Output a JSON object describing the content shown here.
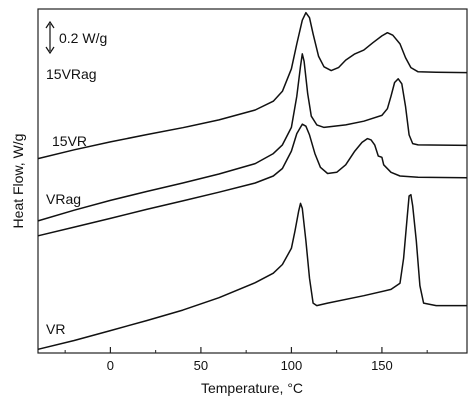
{
  "chart_data": {
    "type": "line",
    "xlabel": "Temperature, °C",
    "ylabel": "Heat Flow, W/g",
    "xlim": [
      -40,
      197
    ],
    "x_ticks": [
      0,
      50,
      100,
      150
    ],
    "x_tick_labels": [
      "0",
      "50",
      "100",
      "150"
    ],
    "y_ticks_shown": false,
    "grid": false,
    "legend": "none",
    "scale_bar": {
      "label": "0.2 W/g",
      "value": 0.2,
      "unit": "W/g"
    },
    "y_data_range": [
      0,
      1.38
    ],
    "series": [
      {
        "name": "15VRag",
        "points": [
          [
            -40,
            0.78
          ],
          [
            -20,
            0.815
          ],
          [
            0,
            0.847
          ],
          [
            20,
            0.876
          ],
          [
            40,
            0.904
          ],
          [
            60,
            0.935
          ],
          [
            80,
            0.975
          ],
          [
            90,
            1.01
          ],
          [
            95,
            1.05
          ],
          [
            100,
            1.14
          ],
          [
            103,
            1.24
          ],
          [
            106,
            1.335
          ],
          [
            108,
            1.365
          ],
          [
            110,
            1.345
          ],
          [
            112,
            1.28
          ],
          [
            115,
            1.19
          ],
          [
            118,
            1.148
          ],
          [
            122,
            1.133
          ],
          [
            126,
            1.145
          ],
          [
            130,
            1.175
          ],
          [
            135,
            1.2
          ],
          [
            140,
            1.215
          ],
          [
            145,
            1.245
          ],
          [
            150,
            1.272
          ],
          [
            153,
            1.285
          ],
          [
            156,
            1.275
          ],
          [
            160,
            1.24
          ],
          [
            163,
            1.185
          ],
          [
            166,
            1.145
          ],
          [
            170,
            1.128
          ],
          [
            180,
            1.126
          ],
          [
            197,
            1.125
          ]
        ]
      },
      {
        "name": "15VR",
        "points": [
          [
            -40,
            0.53
          ],
          [
            -20,
            0.573
          ],
          [
            0,
            0.612
          ],
          [
            20,
            0.648
          ],
          [
            40,
            0.682
          ],
          [
            60,
            0.718
          ],
          [
            80,
            0.76
          ],
          [
            90,
            0.8
          ],
          [
            95,
            0.835
          ],
          [
            100,
            0.905
          ],
          [
            103,
            1.03
          ],
          [
            105,
            1.15
          ],
          [
            106,
            1.2
          ],
          [
            107,
            1.17
          ],
          [
            109,
            1.04
          ],
          [
            111,
            0.95
          ],
          [
            114,
            0.915
          ],
          [
            118,
            0.905
          ],
          [
            130,
            0.915
          ],
          [
            140,
            0.93
          ],
          [
            150,
            0.953
          ],
          [
            153,
            0.98
          ],
          [
            155,
            1.03
          ],
          [
            157,
            1.085
          ],
          [
            159,
            1.1
          ],
          [
            161,
            1.08
          ],
          [
            163,
            0.99
          ],
          [
            165,
            0.875
          ],
          [
            167,
            0.84
          ],
          [
            170,
            0.835
          ],
          [
            197,
            0.833
          ]
        ]
      },
      {
        "name": "VRag",
        "points": [
          [
            -40,
            0.47
          ],
          [
            -20,
            0.505
          ],
          [
            0,
            0.54
          ],
          [
            20,
            0.576
          ],
          [
            40,
            0.61
          ],
          [
            60,
            0.645
          ],
          [
            80,
            0.682
          ],
          [
            90,
            0.71
          ],
          [
            95,
            0.74
          ],
          [
            100,
            0.81
          ],
          [
            103,
            0.88
          ],
          [
            106,
            0.918
          ],
          [
            108,
            0.91
          ],
          [
            110,
            0.875
          ],
          [
            113,
            0.8
          ],
          [
            116,
            0.745
          ],
          [
            120,
            0.72
          ],
          [
            125,
            0.725
          ],
          [
            130,
            0.755
          ],
          [
            135,
            0.81
          ],
          [
            139,
            0.845
          ],
          [
            142,
            0.86
          ],
          [
            144,
            0.855
          ],
          [
            146,
            0.835
          ],
          [
            148,
            0.79
          ],
          [
            150,
            0.785
          ],
          [
            151,
            0.755
          ],
          [
            155,
            0.725
          ],
          [
            160,
            0.71
          ],
          [
            170,
            0.705
          ],
          [
            197,
            0.703
          ]
        ]
      },
      {
        "name": "VR",
        "points": [
          [
            -40,
            0.015
          ],
          [
            -20,
            0.05
          ],
          [
            0,
            0.09
          ],
          [
            20,
            0.13
          ],
          [
            40,
            0.172
          ],
          [
            60,
            0.222
          ],
          [
            80,
            0.282
          ],
          [
            90,
            0.32
          ],
          [
            95,
            0.355
          ],
          [
            100,
            0.42
          ],
          [
            102,
            0.49
          ],
          [
            104,
            0.57
          ],
          [
            105,
            0.6
          ],
          [
            106,
            0.58
          ],
          [
            108,
            0.45
          ],
          [
            110,
            0.3
          ],
          [
            112,
            0.2
          ],
          [
            114,
            0.19
          ],
          [
            120,
            0.2
          ],
          [
            140,
            0.23
          ],
          [
            155,
            0.255
          ],
          [
            160,
            0.28
          ],
          [
            162,
            0.38
          ],
          [
            164,
            0.55
          ],
          [
            165,
            0.63
          ],
          [
            166,
            0.635
          ],
          [
            167,
            0.59
          ],
          [
            169,
            0.45
          ],
          [
            171,
            0.27
          ],
          [
            173,
            0.2
          ],
          [
            180,
            0.19
          ],
          [
            197,
            0.19
          ]
        ]
      }
    ],
    "series_labels": [
      {
        "series": "15VRag",
        "text": "15VRag"
      },
      {
        "series": "15VR",
        "text": "15VR"
      },
      {
        "series": "VRag",
        "text": "VRag"
      },
      {
        "series": "VR",
        "text": "VR"
      }
    ]
  }
}
